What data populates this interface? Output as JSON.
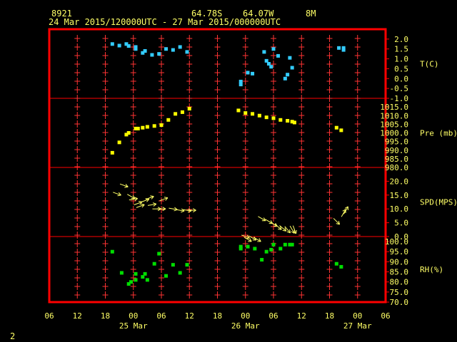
{
  "header": {
    "station_id": "8921",
    "latitude": "64.78S",
    "longitude": "64.07W",
    "elevation": "8M",
    "date_range": "24 Mar 2015/120000UTC - 27 Mar 2015/000000UTC",
    "page_number": "2"
  },
  "colors": {
    "frame": "#ff0000",
    "grid": "#ff3333",
    "text": "#ffff66",
    "temperature": "#33ccff",
    "pressure": "#ffff00",
    "wind": "#ffff66",
    "rh": "#00dd00"
  },
  "chart_data": {
    "type": "scatter",
    "x_axis": {
      "ticks": [
        {
          "h": -18,
          "label": "06"
        },
        {
          "h": -12,
          "label": "12"
        },
        {
          "h": -6,
          "label": "18"
        },
        {
          "h": 0,
          "label": "00"
        },
        {
          "h": 6,
          "label": "06"
        },
        {
          "h": 12,
          "label": "12"
        },
        {
          "h": 18,
          "label": "18"
        },
        {
          "h": 24,
          "label": "00"
        },
        {
          "h": 30,
          "label": "06"
        },
        {
          "h": 36,
          "label": "12"
        },
        {
          "h": 42,
          "label": "18"
        },
        {
          "h": 48,
          "label": "00"
        },
        {
          "h": 54,
          "label": "06"
        }
      ],
      "day_labels": [
        {
          "h": 0,
          "label": "25 Mar"
        },
        {
          "h": 24,
          "label": "26 Mar"
        },
        {
          "h": 48,
          "label": "27 Mar"
        }
      ]
    },
    "panels": [
      {
        "name": "T(C)",
        "type": "scatter",
        "ylim": [
          -1.0,
          2.5
        ],
        "ticks": [
          "2.0",
          "1.5",
          "1.0",
          "0.5",
          "0.0",
          "-0.5",
          "-1.0"
        ],
        "tick_values": [
          2.0,
          1.5,
          1.0,
          0.5,
          0.0,
          -0.5,
          -1.0
        ],
        "points": [
          [
            -4.5,
            1.75
          ],
          [
            -3,
            1.67
          ],
          [
            -1.5,
            1.75
          ],
          [
            -1,
            1.65
          ],
          [
            0.5,
            1.6
          ],
          [
            0.5,
            1.5
          ],
          [
            2,
            1.3
          ],
          [
            2.5,
            1.4
          ],
          [
            4,
            1.2
          ],
          [
            5.5,
            1.25
          ],
          [
            7,
            1.5
          ],
          [
            8.5,
            1.45
          ],
          [
            10,
            1.6
          ],
          [
            11.5,
            1.35
          ],
          [
            23,
            -0.15
          ],
          [
            23,
            -0.3
          ],
          [
            24.5,
            0.3
          ],
          [
            25.5,
            0.25
          ],
          [
            28,
            1.35
          ],
          [
            28.5,
            0.9
          ],
          [
            29,
            0.75
          ],
          [
            29.5,
            0.6
          ],
          [
            30,
            1.5
          ],
          [
            31,
            1.15
          ],
          [
            32.5,
            0.0
          ],
          [
            33,
            0.2
          ],
          [
            33.5,
            1.05
          ],
          [
            34,
            0.55
          ],
          [
            44,
            1.55
          ],
          [
            45,
            1.45
          ],
          [
            45,
            1.55
          ]
        ]
      },
      {
        "name": "Pre (mb)",
        "type": "scatter",
        "ylim": [
          980.0,
          1020.0
        ],
        "ticks": [
          "1015.0",
          "1010.0",
          "1005.0",
          "1000.0",
          "995.0",
          "990.0",
          "985.0",
          "980.0"
        ],
        "tick_values": [
          1015,
          1010,
          1005,
          1000,
          995,
          990,
          985,
          980
        ],
        "points": [
          [
            -4.5,
            988.5
          ],
          [
            -3,
            994.5
          ],
          [
            -1.5,
            999
          ],
          [
            -1,
            1000
          ],
          [
            0.5,
            1002.5
          ],
          [
            1,
            1002.5
          ],
          [
            2,
            1003
          ],
          [
            3,
            1003.5
          ],
          [
            4.5,
            1004
          ],
          [
            6,
            1004.5
          ],
          [
            7.5,
            1007.5
          ],
          [
            9,
            1011
          ],
          [
            10.5,
            1012
          ],
          [
            12,
            1014
          ],
          [
            22.5,
            1013
          ],
          [
            24,
            1011.5
          ],
          [
            25.5,
            1011
          ],
          [
            27,
            1010
          ],
          [
            28.5,
            1009
          ],
          [
            30,
            1008.5
          ],
          [
            31.5,
            1007.5
          ],
          [
            33,
            1007
          ],
          [
            34,
            1006.5
          ],
          [
            34.5,
            1006
          ],
          [
            43.5,
            1003
          ],
          [
            44.5,
            1001.5
          ]
        ]
      },
      {
        "name": "SPD(MPS)",
        "type": "wind_arrows",
        "ylim": [
          0.0,
          25.0
        ],
        "ticks": [
          "20.0",
          "15.0",
          "10.0",
          "5.0",
          "0.0"
        ],
        "tick_values": [
          20,
          15,
          10,
          5,
          0
        ],
        "arrows": [
          [
            -2,
            18.5,
            20
          ],
          [
            -3.5,
            15.5,
            20
          ],
          [
            -0.5,
            14.5,
            30
          ],
          [
            0,
            13.5,
            -10
          ],
          [
            1,
            12,
            -20
          ],
          [
            1.5,
            11,
            -20
          ],
          [
            2.5,
            13,
            -20
          ],
          [
            3.5,
            14,
            -20
          ],
          [
            4,
            11.5,
            -10
          ],
          [
            5,
            10,
            0
          ],
          [
            6.5,
            13.5,
            -20
          ],
          [
            6,
            10,
            0
          ],
          [
            8.5,
            10,
            10
          ],
          [
            10,
            9.5,
            10
          ],
          [
            11.5,
            9.5,
            10
          ],
          [
            12.5,
            9.5,
            0
          ],
          [
            24,
            0,
            20
          ],
          [
            24.5,
            -1,
            30
          ],
          [
            25.5,
            -0.5,
            30
          ],
          [
            26.5,
            -1,
            30
          ],
          [
            27.5,
            6.5,
            30
          ],
          [
            29,
            5.5,
            30
          ],
          [
            30,
            4.5,
            30
          ],
          [
            31,
            3.5,
            40
          ],
          [
            32,
            3,
            40
          ],
          [
            33,
            2.5,
            50
          ],
          [
            34,
            2.5,
            60
          ],
          [
            34.5,
            2.5,
            70
          ],
          [
            43.5,
            5.5,
            45
          ],
          [
            45,
            8.5,
            -60
          ],
          [
            45.5,
            9.5,
            -60
          ]
        ]
      },
      {
        "name": "RH(%)",
        "type": "scatter",
        "ylim": [
          70.0,
          102.5
        ],
        "ticks": [
          "100.0",
          "95.0",
          "90.0",
          "85.0",
          "80.0",
          "75.0",
          "70.0"
        ],
        "tick_values": [
          100,
          95,
          90,
          85,
          80,
          75,
          70
        ],
        "points": [
          [
            -4.5,
            95
          ],
          [
            -2.5,
            84.5
          ],
          [
            -1,
            79
          ],
          [
            -0.5,
            80
          ],
          [
            0.5,
            84
          ],
          [
            0.5,
            81
          ],
          [
            2,
            82.5
          ],
          [
            2.5,
            84
          ],
          [
            3,
            81
          ],
          [
            4.5,
            89
          ],
          [
            5.5,
            94
          ],
          [
            7,
            83
          ],
          [
            8.5,
            88.5
          ],
          [
            10,
            84.5
          ],
          [
            11.5,
            88.5
          ],
          [
            23,
            96.5
          ],
          [
            23,
            97.5
          ],
          [
            24.5,
            97.5
          ],
          [
            26,
            96.5
          ],
          [
            27.5,
            91
          ],
          [
            28.5,
            95
          ],
          [
            29.5,
            96
          ],
          [
            30,
            98.5
          ],
          [
            31.5,
            96.5
          ],
          [
            32.5,
            98.5
          ],
          [
            33.5,
            98.5
          ],
          [
            34,
            98.5
          ],
          [
            43.5,
            89
          ],
          [
            44.5,
            87.5
          ]
        ]
      }
    ]
  }
}
